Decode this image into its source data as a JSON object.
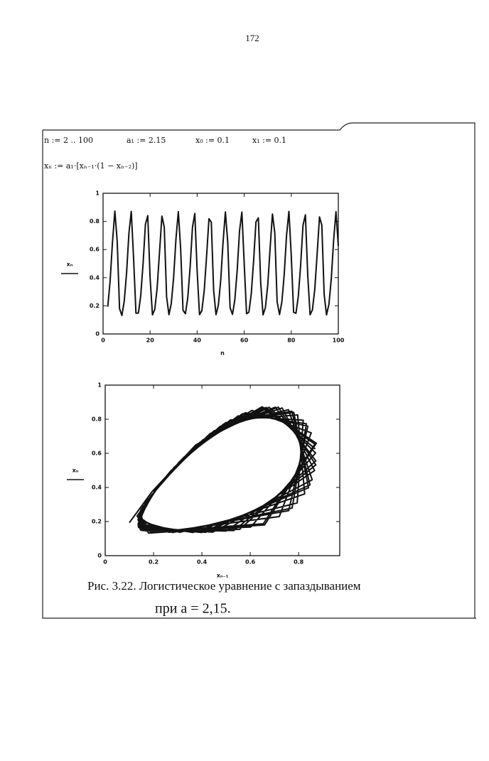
{
  "page_number": "172",
  "definitions": [
    "n := 2 .. 100",
    "a₁ := 2.15",
    "x₀ := 0.1",
    "x₁ := 0.1"
  ],
  "formula": "xₙ := a₁·[xₙ₋₁·(1 − xₙ₋₂)]",
  "chart_data": [
    {
      "type": "line",
      "xlabel": "n",
      "ylabel": "xₙ",
      "color": "#111",
      "xlim": [
        0,
        100
      ],
      "ylim": [
        0,
        1
      ],
      "xticks": [
        0,
        20,
        40,
        60,
        80,
        100
      ],
      "yticks": [
        0,
        0.2,
        0.4,
        0.6,
        0.8,
        1
      ],
      "x": [
        2,
        3,
        4,
        5,
        6,
        7,
        8,
        9,
        10,
        11,
        12,
        13,
        14,
        15,
        16,
        17,
        18,
        19,
        20,
        21,
        22,
        23,
        24,
        25,
        26,
        27,
        28,
        29,
        30,
        31,
        32,
        33,
        34,
        35,
        36,
        37,
        38,
        39,
        40,
        41,
        42,
        43,
        44,
        45,
        46,
        47,
        48,
        49,
        50,
        51,
        52,
        53,
        54,
        55,
        56,
        57,
        58,
        59,
        60,
        61,
        62,
        63,
        64,
        65,
        66,
        67,
        68,
        69,
        70,
        71,
        72,
        73,
        74,
        75,
        76,
        77,
        78,
        79,
        80,
        81,
        82,
        83,
        84,
        85,
        86,
        87,
        88,
        89,
        90,
        91,
        92,
        93,
        94,
        95,
        96,
        97,
        98,
        99,
        100
      ],
      "values": [
        0.1935,
        0.3744,
        0.649,
        0.873,
        0.659,
        0.18,
        0.132,
        0.2327,
        0.434,
        0.716,
        0.871,
        0.532,
        0.1476,
        0.1485,
        0.2722,
        0.4983,
        0.7797,
        0.841,
        0.398,
        0.136,
        0.176,
        0.327,
        0.579,
        0.838,
        0.759,
        0.264,
        0.137,
        0.217,
        0.403,
        0.678,
        0.87,
        0.602,
        0.168,
        0.144,
        0.258,
        0.475,
        0.758,
        0.856,
        0.445,
        0.138,
        0.165,
        0.306,
        0.549,
        0.819,
        0.794,
        0.309,
        0.137,
        0.204,
        0.379,
        0.649,
        0.867,
        0.654,
        0.187,
        0.139,
        0.243,
        0.45,
        0.732,
        0.866,
        0.499,
        0.144,
        0.155,
        0.285,
        0.518,
        0.796,
        0.825,
        0.362,
        0.136,
        0.187,
        0.347,
        0.607,
        0.852,
        0.72,
        0.229,
        0.138,
        0.229,
        0.424,
        0.703,
        0.871,
        0.556,
        0.154,
        0.147,
        0.267,
        0.49,
        0.772,
        0.847,
        0.415,
        0.137,
        0.172,
        0.319,
        0.568,
        0.832,
        0.773,
        0.279,
        0.136,
        0.211,
        0.392,
        0.665,
        0.869,
        0.626
      ]
    },
    {
      "type": "line",
      "xlabel": "xₙ₋₁",
      "ylabel": "xₙ",
      "color": "#111",
      "xlim": [
        0,
        0.97
      ],
      "ylim": [
        0,
        1
      ],
      "xticks": [
        0,
        0.2,
        0.4,
        0.6,
        0.8
      ],
      "yticks": [
        0,
        0.2,
        0.4,
        0.6,
        0.8,
        1
      ],
      "x": [
        0.1,
        0.1935,
        0.3744,
        0.649,
        0.873,
        0.659,
        0.18,
        0.132,
        0.2327,
        0.434,
        0.716,
        0.871,
        0.532,
        0.1476,
        0.1485,
        0.2722,
        0.4983,
        0.7797,
        0.841,
        0.398,
        0.136,
        0.176,
        0.327,
        0.579,
        0.838,
        0.759,
        0.264,
        0.137,
        0.217,
        0.403,
        0.678,
        0.87,
        0.602,
        0.168,
        0.144,
        0.258,
        0.475,
        0.758,
        0.856,
        0.445,
        0.138,
        0.165,
        0.306,
        0.549,
        0.819,
        0.794,
        0.309,
        0.137,
        0.204,
        0.379,
        0.649,
        0.867,
        0.654,
        0.187,
        0.139,
        0.243,
        0.45,
        0.732,
        0.866,
        0.499,
        0.144,
        0.155,
        0.285,
        0.518,
        0.796,
        0.825,
        0.362,
        0.136,
        0.187,
        0.347,
        0.607,
        0.852,
        0.72,
        0.229,
        0.138,
        0.229,
        0.424,
        0.703,
        0.871,
        0.556,
        0.154,
        0.147,
        0.267,
        0.49,
        0.772,
        0.847,
        0.415,
        0.137,
        0.172,
        0.319,
        0.568,
        0.832,
        0.773,
        0.279,
        0.136,
        0.211,
        0.392,
        0.665,
        0.869
      ],
      "values": [
        0.1935,
        0.3744,
        0.649,
        0.873,
        0.659,
        0.18,
        0.132,
        0.2327,
        0.434,
        0.716,
        0.871,
        0.532,
        0.1476,
        0.1485,
        0.2722,
        0.4983,
        0.7797,
        0.841,
        0.398,
        0.136,
        0.176,
        0.327,
        0.579,
        0.838,
        0.759,
        0.264,
        0.137,
        0.217,
        0.403,
        0.678,
        0.87,
        0.602,
        0.168,
        0.144,
        0.258,
        0.475,
        0.758,
        0.856,
        0.445,
        0.138,
        0.165,
        0.306,
        0.549,
        0.819,
        0.794,
        0.309,
        0.137,
        0.204,
        0.379,
        0.649,
        0.867,
        0.654,
        0.187,
        0.139,
        0.243,
        0.45,
        0.732,
        0.866,
        0.499,
        0.144,
        0.155,
        0.285,
        0.518,
        0.796,
        0.825,
        0.362,
        0.136,
        0.187,
        0.347,
        0.607,
        0.852,
        0.72,
        0.229,
        0.138,
        0.229,
        0.424,
        0.703,
        0.871,
        0.556,
        0.154,
        0.147,
        0.267,
        0.49,
        0.772,
        0.847,
        0.415,
        0.137,
        0.172,
        0.319,
        0.568,
        0.832,
        0.773,
        0.279,
        0.136,
        0.211,
        0.392,
        0.665,
        0.869,
        0.626
      ]
    }
  ],
  "caption": [
    "Рис. 3.22. Логистическое уравнение с запаздыванием",
    "при a = 2,15."
  ]
}
